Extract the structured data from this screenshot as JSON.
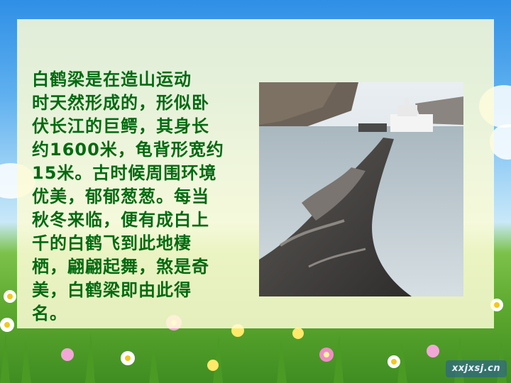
{
  "slide": {
    "body_text": "    白鹤梁是在造山运动\n时天然形成的，形似卧\n伏长江的巨鳄，其身长\n约1600米，龟背形宽约\n15米。古时候周围环境\n优美，郁郁葱葱。每当\n秋冬来临，便有成白上\n千的白鹤飞到此地棲\n栖，翩翩起舞，煞是奇\n美，白鹤梁即由此得\n名。",
    "watermark": "xxjxsj.cn"
  },
  "colors": {
    "text": "#006a10",
    "panel": "#fdfcd6",
    "sky": "#5fb0ef",
    "grass": "#5ea92f"
  },
  "icons": {
    "photo": "white-crane-ridge-rock-photo"
  }
}
